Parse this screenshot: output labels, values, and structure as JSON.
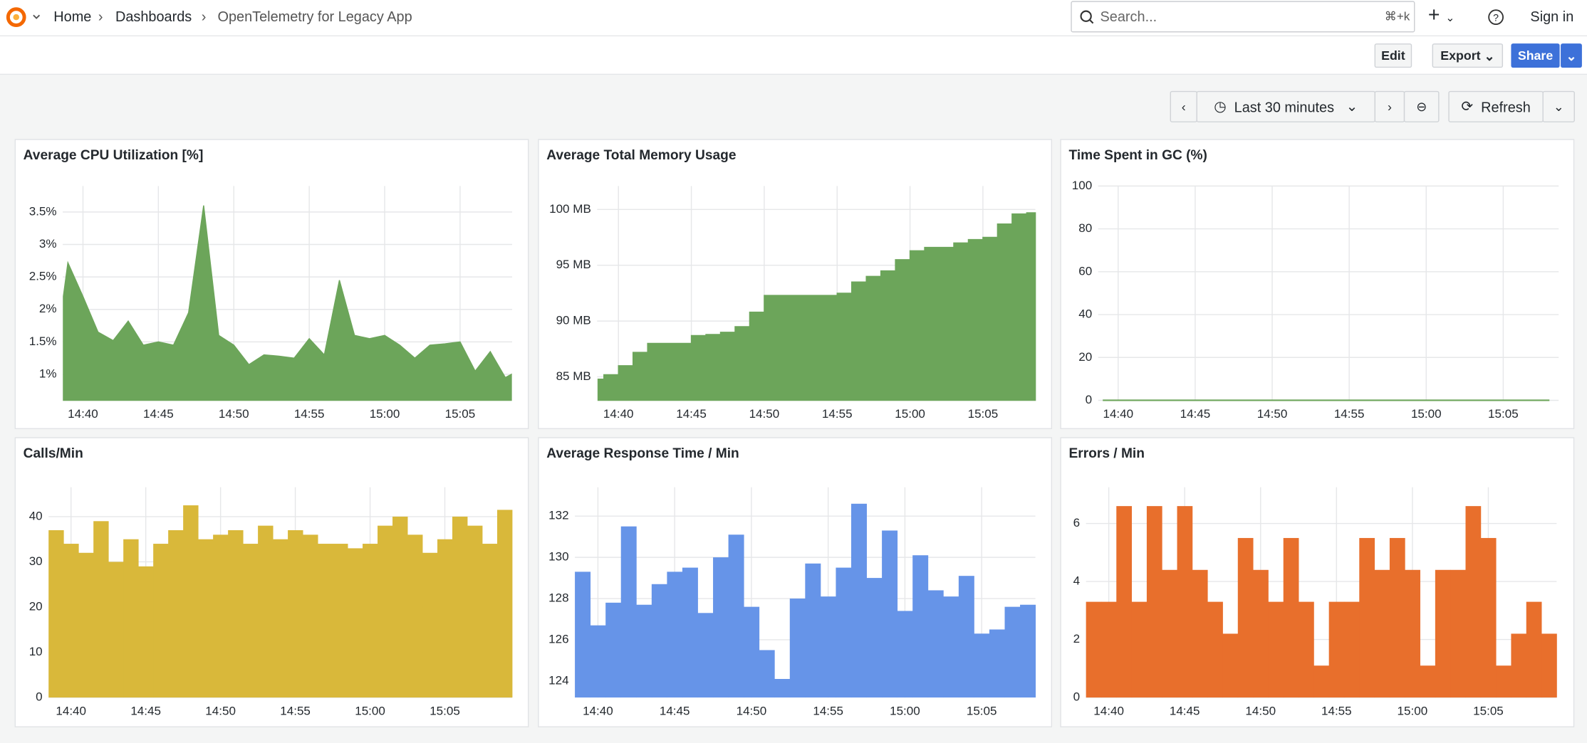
{
  "header": {
    "breadcrumbs": [
      "Home",
      "Dashboards",
      "OpenTelemetry for Legacy App"
    ],
    "search": "Search...",
    "shortcut": "⌘+k",
    "sign_in": "Sign in"
  },
  "toolbar": {
    "edit": "Edit",
    "export": "Export",
    "share": "Share"
  },
  "time_controls": {
    "range": "Last 30 minutes",
    "refresh": "Refresh"
  },
  "chart_data": [
    {
      "type": "area",
      "title": "Average CPU Utilization [%]",
      "color": "#6ca55a",
      "x": [
        878.7,
        879,
        880,
        881,
        882,
        883,
        884,
        885,
        886,
        887,
        888,
        889,
        890,
        891,
        892,
        893,
        894,
        895,
        896,
        897,
        898,
        899,
        900,
        901,
        902,
        903,
        904,
        905,
        906,
        907,
        908,
        908.4
      ],
      "values": [
        2.2,
        2.72,
        2.2,
        1.65,
        1.52,
        1.82,
        1.45,
        1.5,
        1.45,
        1.95,
        3.6,
        1.6,
        1.45,
        1.15,
        1.3,
        1.28,
        1.25,
        1.55,
        1.3,
        2.45,
        1.6,
        1.55,
        1.6,
        1.45,
        1.25,
        1.45,
        1.47,
        1.5,
        1.05,
        1.35,
        0.95,
        1.0
      ],
      "xlim": [
        878.66,
        908.45
      ],
      "ylim": [
        0.6,
        3.9
      ],
      "xticks": [
        {
          "value": 880,
          "label": "14:40"
        },
        {
          "value": 885,
          "label": "14:45"
        },
        {
          "value": 890,
          "label": "14:50"
        },
        {
          "value": 895,
          "label": "14:55"
        },
        {
          "value": 900,
          "label": "15:00"
        },
        {
          "value": 905,
          "label": "15:05"
        }
      ],
      "yticks": [
        {
          "value": 1,
          "label": "1%"
        },
        {
          "value": 1.5,
          "label": "1.5%"
        },
        {
          "value": 2,
          "label": "2%"
        },
        {
          "value": 2.5,
          "label": "2.5%"
        },
        {
          "value": 3,
          "label": "3%"
        },
        {
          "value": 3.5,
          "label": "3.5%"
        }
      ],
      "grid": true
    },
    {
      "type": "area",
      "step": true,
      "title": "Average Total Memory Usage",
      "color": "#6ca55a",
      "x": [
        878.6,
        879,
        880,
        881,
        882,
        883,
        884,
        885,
        886,
        887,
        888,
        889,
        890,
        891,
        892,
        893,
        894,
        895,
        896,
        897,
        898,
        899,
        900,
        901,
        902,
        903,
        904,
        905,
        906,
        907,
        908
      ],
      "values": [
        84.8,
        85.2,
        86.0,
        87.2,
        88.0,
        88.0,
        88.0,
        88.7,
        88.8,
        89.0,
        89.5,
        90.8,
        92.3,
        92.3,
        92.3,
        92.3,
        92.3,
        92.5,
        93.5,
        94.0,
        94.5,
        95.5,
        96.3,
        96.6,
        96.6,
        97.0,
        97.3,
        97.5,
        98.7,
        99.6,
        99.7
      ],
      "xlim": [
        878.54,
        908.6
      ],
      "ylim": [
        82.9,
        102.1
      ],
      "xticks": [
        {
          "value": 880,
          "label": "14:40"
        },
        {
          "value": 885,
          "label": "14:45"
        },
        {
          "value": 890,
          "label": "14:50"
        },
        {
          "value": 895,
          "label": "14:55"
        },
        {
          "value": 900,
          "label": "15:00"
        },
        {
          "value": 905,
          "label": "15:05"
        }
      ],
      "yticks": [
        {
          "value": 85,
          "label": "85 MB"
        },
        {
          "value": 90,
          "label": "90 MB"
        },
        {
          "value": 95,
          "label": "95 MB"
        },
        {
          "value": 100,
          "label": "100 MB"
        }
      ],
      "grid": true
    },
    {
      "type": "line",
      "title": "Time Spent in GC (%)",
      "color": "#6ca55a",
      "x": [
        879,
        880,
        881,
        882,
        883,
        884,
        885,
        886,
        887,
        888,
        889,
        890,
        891,
        892,
        893,
        894,
        895,
        896,
        897,
        898,
        899,
        900,
        901,
        902,
        903,
        904,
        905,
        906,
        907,
        908
      ],
      "values": [
        0,
        0,
        0,
        0,
        0,
        0,
        0,
        0,
        0,
        0,
        0,
        0,
        0,
        0,
        0,
        0,
        0,
        0,
        0,
        0,
        0,
        0,
        0,
        0,
        0,
        0,
        0,
        0,
        0,
        0
      ],
      "xlim": [
        878.7,
        908.6
      ],
      "ylim": [
        0,
        100
      ],
      "xticks": [
        {
          "value": 880,
          "label": "14:40"
        },
        {
          "value": 885,
          "label": "14:45"
        },
        {
          "value": 890,
          "label": "14:50"
        },
        {
          "value": 895,
          "label": "14:55"
        },
        {
          "value": 900,
          "label": "15:00"
        },
        {
          "value": 905,
          "label": "15:05"
        }
      ],
      "yticks": [
        0,
        20,
        40,
        60,
        80,
        100
      ],
      "grid": true
    },
    {
      "type": "bar",
      "title": "Calls/Min",
      "color": "#d9b83a",
      "x": [
        879,
        880,
        881,
        882,
        883,
        884,
        885,
        886,
        887,
        888,
        889,
        890,
        891,
        892,
        893,
        894,
        895,
        896,
        897,
        898,
        899,
        900,
        901,
        902,
        903,
        904,
        905,
        906,
        907,
        908,
        909
      ],
      "values": [
        37,
        34,
        32,
        39,
        30,
        35,
        29,
        34,
        37,
        42.5,
        35,
        36,
        37,
        34,
        38,
        35,
        37,
        36,
        34,
        34,
        33,
        34,
        38,
        40,
        36,
        32,
        35,
        40,
        38,
        34,
        41.5
      ],
      "xlim": [
        878.5,
        909.5
      ],
      "ylim": [
        0,
        46.5
      ],
      "xticks": [
        {
          "value": 880,
          "label": "14:40"
        },
        {
          "value": 885,
          "label": "14:45"
        },
        {
          "value": 890,
          "label": "14:50"
        },
        {
          "value": 895,
          "label": "14:55"
        },
        {
          "value": 900,
          "label": "15:00"
        },
        {
          "value": 905,
          "label": "15:05"
        }
      ],
      "yticks": [
        0,
        10,
        20,
        30,
        40
      ],
      "grid": true
    },
    {
      "type": "bar",
      "title": "Average Response Time / Min",
      "color": "#6694e8",
      "x": [
        879,
        880,
        881,
        882,
        883,
        884,
        885,
        886,
        887,
        888,
        889,
        890,
        891,
        892,
        893,
        894,
        895,
        896,
        897,
        898,
        899,
        900,
        901,
        902,
        903,
        904,
        905,
        906,
        907,
        908
      ],
      "values": [
        129.3,
        126.7,
        127.8,
        131.5,
        127.7,
        128.7,
        129.3,
        129.5,
        127.3,
        130,
        131.1,
        127.6,
        125.5,
        124.1,
        128,
        129.7,
        128.1,
        129.5,
        132.6,
        129,
        131.3,
        127.4,
        130.1,
        128.4,
        128.1,
        129.1,
        126.3,
        126.5,
        127.6,
        127.7
      ],
      "xlim": [
        878.5,
        908.5
      ],
      "ylim": [
        123.2,
        133.4
      ],
      "xticks": [
        {
          "value": 880,
          "label": "14:40"
        },
        {
          "value": 885,
          "label": "14:45"
        },
        {
          "value": 890,
          "label": "14:50"
        },
        {
          "value": 895,
          "label": "14:55"
        },
        {
          "value": 900,
          "label": "15:00"
        },
        {
          "value": 905,
          "label": "15:05"
        }
      ],
      "yticks": [
        124,
        126,
        128,
        130,
        132
      ],
      "grid": true
    },
    {
      "type": "bar",
      "title": "Errors / Min",
      "color": "#e86f2c",
      "x": [
        879,
        880,
        881,
        882,
        883,
        884,
        885,
        886,
        887,
        888,
        889,
        890,
        891,
        892,
        893,
        894,
        895,
        896,
        897,
        898,
        899,
        900,
        901,
        902,
        903,
        904,
        905,
        906,
        907,
        908,
        909
      ],
      "values": [
        3.3,
        3.3,
        6.6,
        3.3,
        6.6,
        4.4,
        6.6,
        4.4,
        3.3,
        2.2,
        5.5,
        4.4,
        3.3,
        5.5,
        3.3,
        1.1,
        3.3,
        3.3,
        5.5,
        4.4,
        5.5,
        4.4,
        1.1,
        4.4,
        4.4,
        6.6,
        5.5,
        1.1,
        2.2,
        3.3,
        2.2
      ],
      "xlim": [
        878.5,
        909.5
      ],
      "ylim": [
        0,
        7.25
      ],
      "xticks": [
        {
          "value": 880,
          "label": "14:40"
        },
        {
          "value": 885,
          "label": "14:45"
        },
        {
          "value": 890,
          "label": "14:50"
        },
        {
          "value": 895,
          "label": "14:55"
        },
        {
          "value": 900,
          "label": "15:00"
        },
        {
          "value": 905,
          "label": "15:05"
        }
      ],
      "yticks": [
        0,
        2,
        4,
        6
      ],
      "grid": true
    }
  ]
}
